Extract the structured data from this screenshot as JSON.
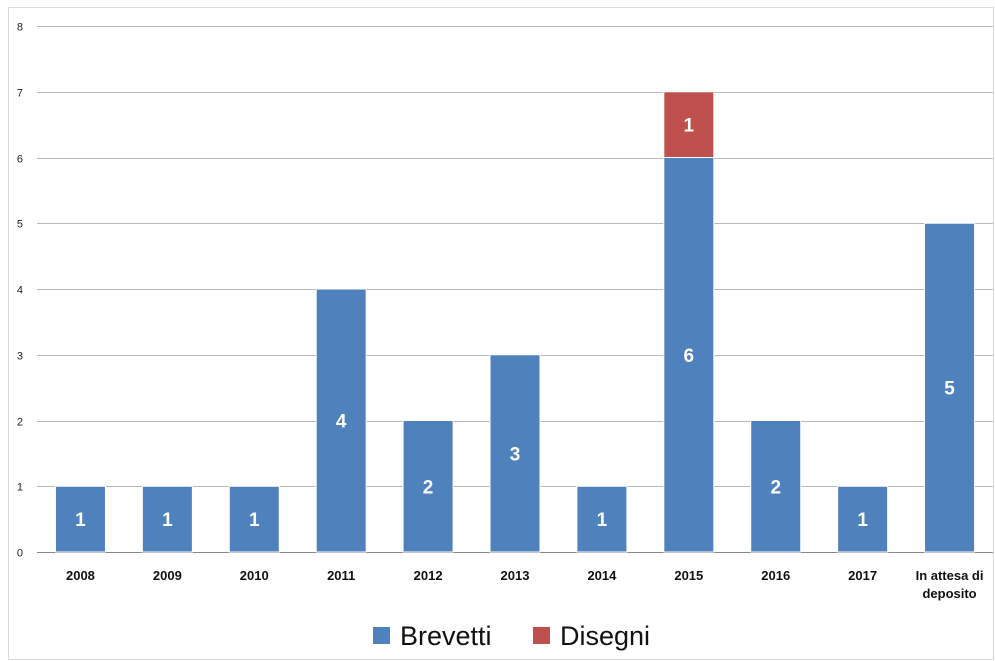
{
  "chart_data": {
    "type": "bar",
    "stacked": true,
    "categories": [
      "2008",
      "2009",
      "2010",
      "2011",
      "2012",
      "2013",
      "2014",
      "2015",
      "2016",
      "2017",
      "In attesa di deposito"
    ],
    "series": [
      {
        "name": "Brevetti",
        "values": [
          1,
          1,
          1,
          4,
          2,
          3,
          1,
          6,
          2,
          1,
          5
        ],
        "color": "#4f81bd"
      },
      {
        "name": "Disegni",
        "values": [
          0,
          0,
          0,
          0,
          0,
          0,
          0,
          1,
          0,
          0,
          0
        ],
        "color": "#c0504d"
      }
    ],
    "data_labels": {
      "Brevetti": [
        "1",
        "1",
        "1",
        "4",
        "2",
        "3",
        "1",
        "6",
        "2",
        "1",
        "5"
      ],
      "Disegni": [
        "",
        "",
        "",
        "",
        "",
        "",
        "",
        "1",
        "",
        "",
        ""
      ]
    },
    "yticks": [
      "0",
      "1",
      "2",
      "3",
      "4",
      "5",
      "6",
      "7",
      "8"
    ],
    "ylim": [
      0,
      8
    ],
    "grid": true,
    "legend_position": "bottom",
    "title": "",
    "xlabel": "",
    "ylabel": ""
  }
}
